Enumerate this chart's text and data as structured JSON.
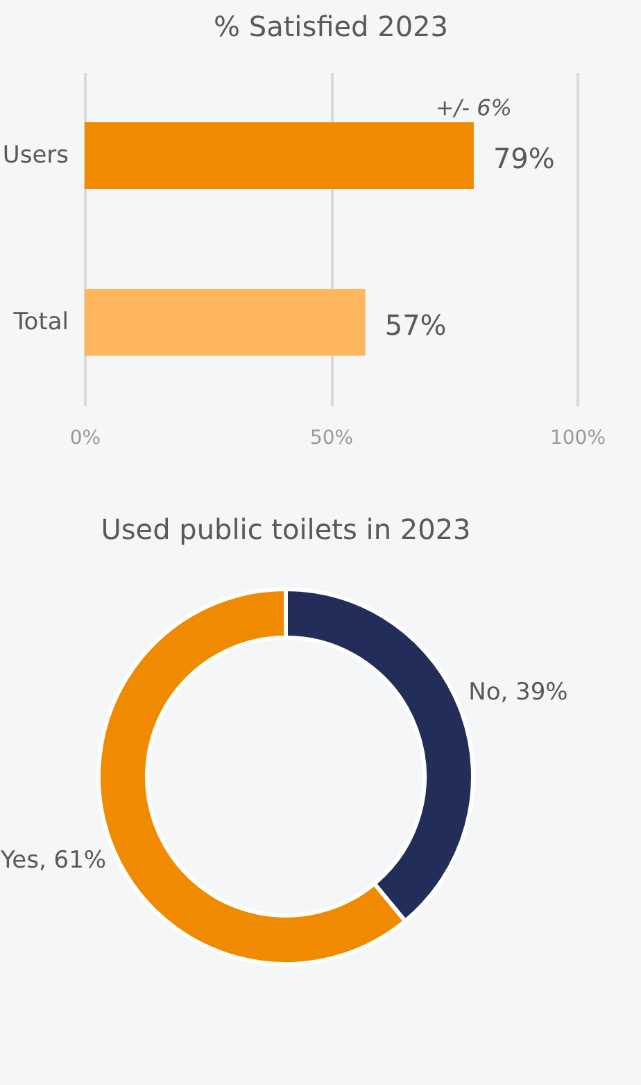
{
  "chart_data": [
    {
      "type": "bar",
      "orientation": "horizontal",
      "title": "% Satisfied 2023",
      "categories": [
        "Users",
        "Total"
      ],
      "values": [
        79,
        57
      ],
      "colors": [
        "#f08a00",
        "#ffb65c"
      ],
      "value_labels": [
        "79%",
        "57%"
      ],
      "xlim": [
        0,
        100
      ],
      "xticks": [
        {
          "value": 0,
          "label": "0%"
        },
        {
          "value": 50,
          "label": "50%"
        },
        {
          "value": 100,
          "label": "100%"
        }
      ],
      "grid": "x",
      "annotations": [
        {
          "text": "+/- 6%",
          "x": 79,
          "y": "Users"
        }
      ]
    },
    {
      "type": "donut",
      "title": "Used public toilets in 2023",
      "categories": [
        "No",
        "Yes"
      ],
      "values": [
        39,
        61
      ],
      "colors": [
        "#222d5a",
        "#f08a00"
      ],
      "value_labels": [
        "39%",
        "61%"
      ]
    }
  ]
}
